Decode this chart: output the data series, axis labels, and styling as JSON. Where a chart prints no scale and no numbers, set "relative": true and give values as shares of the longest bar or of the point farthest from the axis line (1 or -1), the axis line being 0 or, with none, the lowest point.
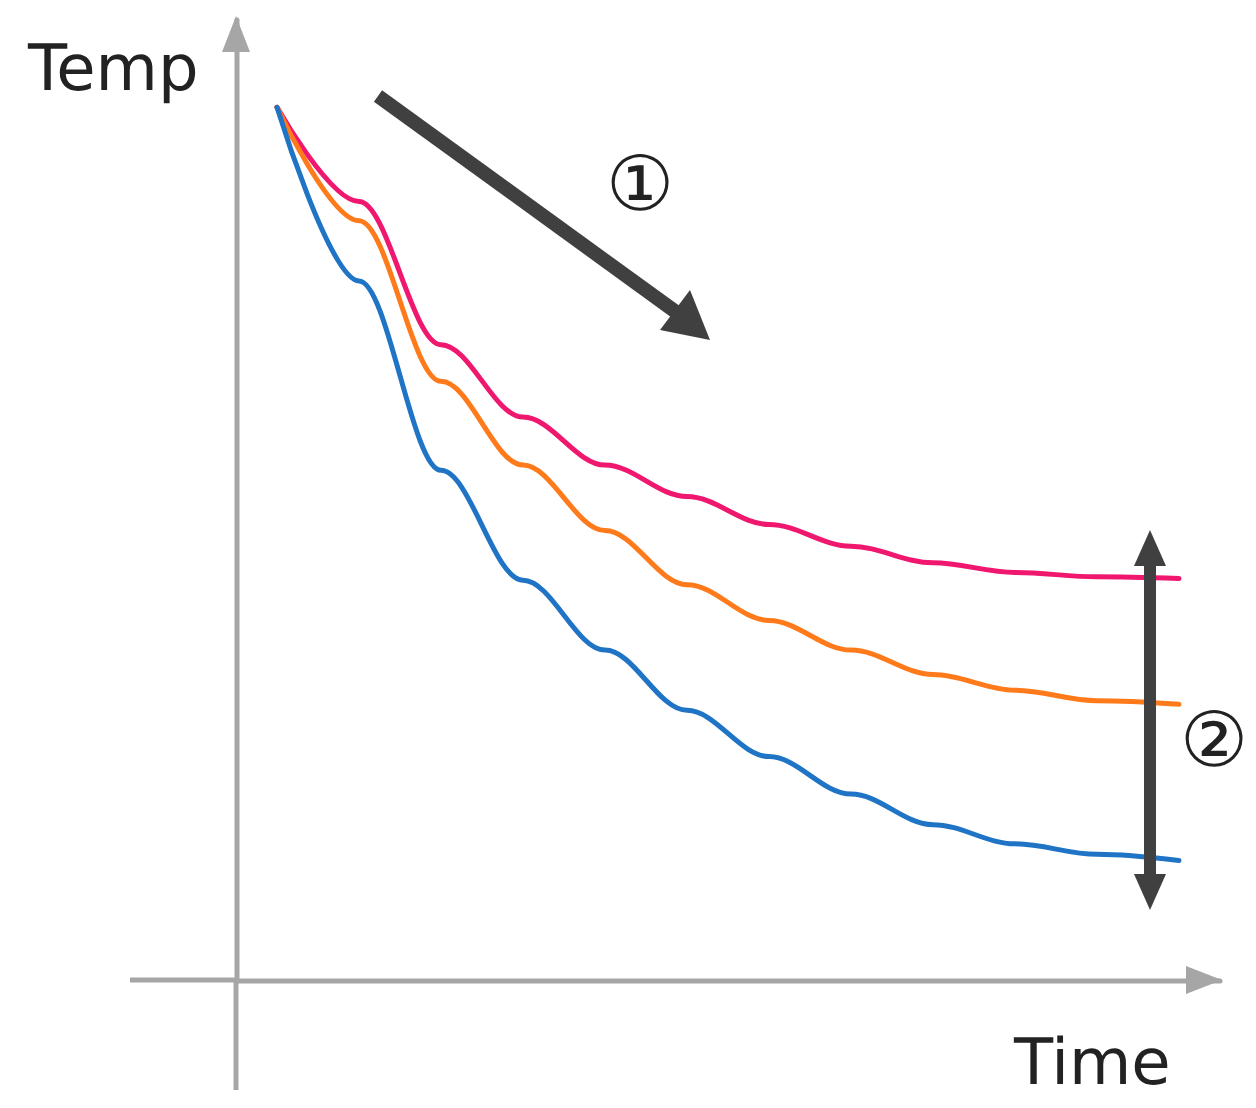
{
  "chart_data": {
    "type": "line",
    "relative": true,
    "xlabel": "Time",
    "ylabel": "Temp",
    "annotations": [
      "①",
      "②"
    ],
    "categories": [
      null,
      null,
      null,
      null,
      null,
      null,
      null,
      null,
      null,
      null,
      null,
      null
    ],
    "series": [
      {
        "color": "#f0176e",
        "values": [
          1,
          0.892,
          0.728,
          0.645,
          0.59,
          0.554,
          0.522,
          0.497,
          0.478,
          0.467,
          0.462,
          0.46
        ]
      },
      {
        "color": "#ff7a1a",
        "values": [
          1,
          0.87,
          0.686,
          0.59,
          0.515,
          0.453,
          0.412,
          0.378,
          0.35,
          0.332,
          0.32,
          0.316
        ]
      },
      {
        "color": "#1f74c6",
        "values": [
          1,
          0.801,
          0.584,
          0.458,
          0.378,
          0.309,
          0.256,
          0.213,
          0.178,
          0.156,
          0.144,
          0.137
        ]
      }
    ],
    "grid": false,
    "marker": "none",
    "line_style": "solid"
  }
}
